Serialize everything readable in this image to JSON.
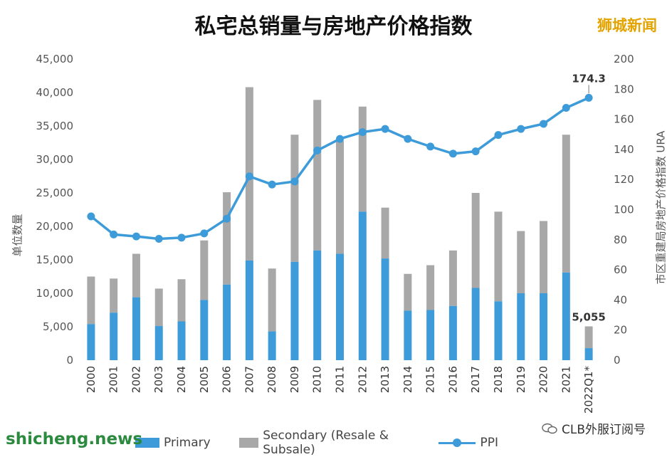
{
  "title": "私宅总销量与房地产价格指数",
  "brand": "狮城新闻",
  "watermark_left": "shicheng.news",
  "watermark_right": "CLB外服订阅号",
  "colors": {
    "primary": "#3d9bd9",
    "secondary": "#a8a8a8",
    "ppi": "#3d9bd9"
  },
  "chart_data": {
    "type": "bar",
    "categories": [
      "2000",
      "2001",
      "2002",
      "2003",
      "2004",
      "2005",
      "2006",
      "2007",
      "2008",
      "2009",
      "2010",
      "2011",
      "2012",
      "2013",
      "2014",
      "2015",
      "2016",
      "2017",
      "2018",
      "2019",
      "2020",
      "2021",
      "2022Q1*"
    ],
    "stacked": true,
    "series": [
      {
        "name": "Primary",
        "type": "bar",
        "axis": "left",
        "values": [
          5400,
          7100,
          9400,
          5100,
          5800,
          9000,
          11300,
          14900,
          4300,
          14700,
          16400,
          15900,
          22200,
          15200,
          7400,
          7500,
          8100,
          10800,
          8800,
          10000,
          10000,
          13100,
          1800
        ]
      },
      {
        "name": "Secondary (Resale & Subsale)",
        "type": "bar",
        "axis": "left",
        "values": [
          7100,
          5100,
          6500,
          5600,
          6300,
          8900,
          13800,
          25900,
          9400,
          19000,
          22500,
          16900,
          15700,
          7600,
          5500,
          6700,
          8300,
          14200,
          13400,
          9300,
          10800,
          20600,
          3255
        ]
      },
      {
        "name": "PPI",
        "type": "line",
        "axis": "right",
        "values": [
          95.5,
          83.5,
          82.2,
          80.6,
          81.4,
          84.2,
          94.0,
          122.1,
          116.7,
          118.7,
          139.3,
          147.0,
          151.5,
          153.6,
          147.0,
          141.9,
          137.2,
          138.7,
          149.6,
          153.6,
          157.0,
          167.6,
          174.3
        ]
      }
    ],
    "ylabel": "单位数量",
    "y2label": "市区重建局房地产价格指数 URA PPI",
    "ylim": [
      0,
      45000
    ],
    "yticks": [
      "0",
      "5,000",
      "10,000",
      "15,000",
      "20,000",
      "25,000",
      "30,000",
      "35,000",
      "40,000",
      "45,000"
    ],
    "y2lim": [
      0,
      200
    ],
    "y2ticks": [
      "0",
      "20",
      "40",
      "60",
      "80",
      "100",
      "120",
      "140",
      "160",
      "180",
      "200"
    ],
    "annotations": [
      {
        "target": "PPI",
        "index": 22,
        "text": "174.3"
      },
      {
        "target": "total",
        "index": 22,
        "text": "5,055"
      }
    ],
    "legend": "bottom",
    "grid": false
  }
}
